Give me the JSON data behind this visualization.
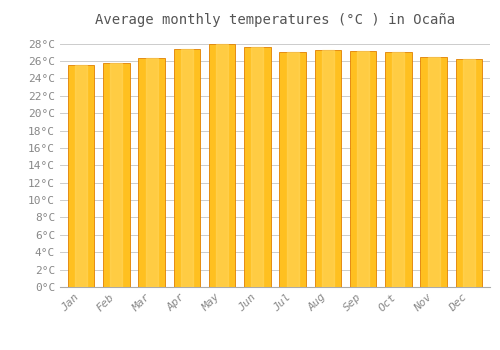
{
  "months": [
    "Jan",
    "Feb",
    "Mar",
    "Apr",
    "May",
    "Jun",
    "Jul",
    "Aug",
    "Sep",
    "Oct",
    "Nov",
    "Dec"
  ],
  "values": [
    25.5,
    25.8,
    26.4,
    27.4,
    28.0,
    27.6,
    27.0,
    27.3,
    27.2,
    27.0,
    26.5,
    26.2
  ],
  "bar_color_face": "#FFC020",
  "bar_color_edge": "#E08000",
  "background_color": "#FFFFFF",
  "plot_bg_color": "#FFFFFF",
  "grid_color": "#CCCCCC",
  "title": "Average monthly temperatures (°C ) in Ocaña",
  "title_fontsize": 10,
  "tick_label_fontsize": 8,
  "ytick_step": 2,
  "ymin": 0,
  "ymax": 29,
  "tick_color": "#888888",
  "title_color": "#555555"
}
